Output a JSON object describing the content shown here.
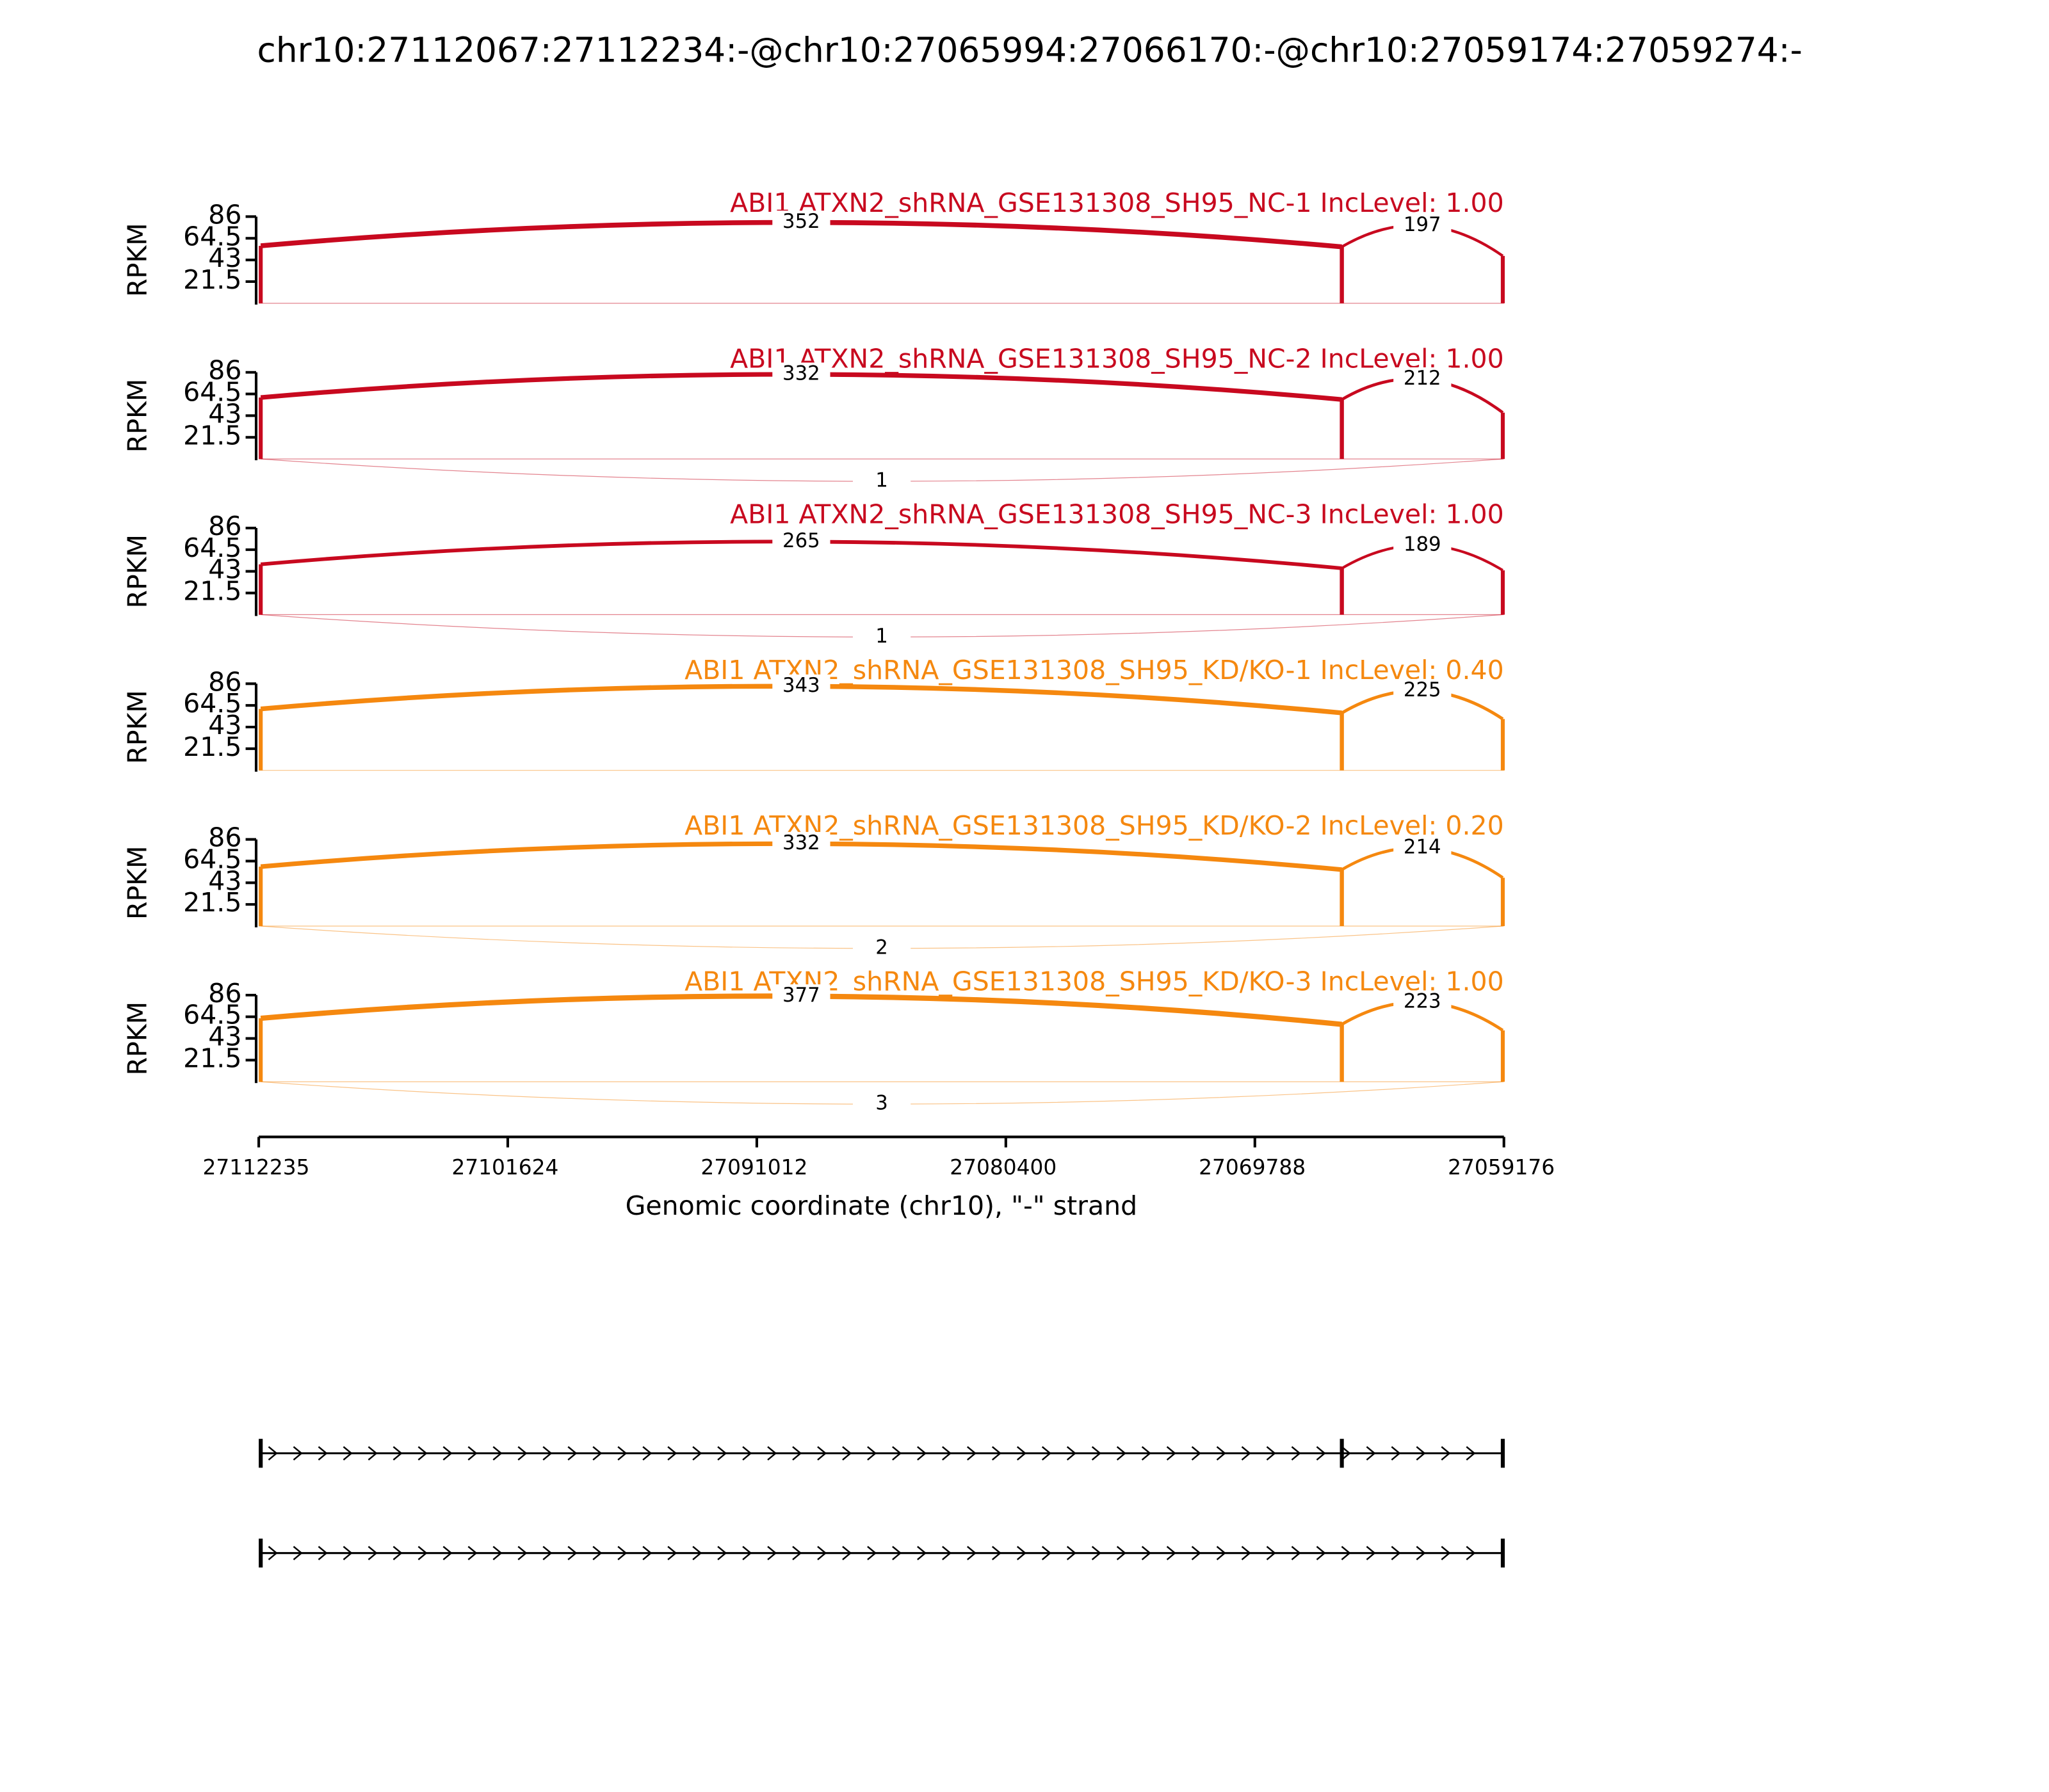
{
  "chart_data": {
    "type": "sashimi",
    "title": "chr10:27112067:27112234:-@chr10:27065994:27066170:-@chr10:27059174:27059274:-",
    "xlabel": "Genomic coordinate (chr10), \"-\" strand",
    "ylabel": "RPKM",
    "xlim": [
      27112235,
      27059176
    ],
    "xticks": [
      27112235,
      27101624,
      27091012,
      27080400,
      27069788,
      27059176
    ],
    "ylim": [
      0,
      86
    ],
    "yticks": [
      21.5,
      43,
      64.5,
      86
    ],
    "exons": [
      [
        27112067,
        27112234
      ],
      [
        27065994,
        27066170
      ],
      [
        27059174,
        27059274
      ]
    ],
    "panels": [
      {
        "name": "ABI1 ATXN2_shRNA_GSE131308_SH95_NC-1 IncLevel: 1.00",
        "color": "#c8091f",
        "exon_rpkm": [
          57,
          56,
          47
        ],
        "junctions": [
          {
            "exons": [
              0,
              1
            ],
            "count": 352
          },
          {
            "exons": [
              1,
              2
            ],
            "count": 197
          }
        ]
      },
      {
        "name": "ABI1 ATXN2_shRNA_GSE131308_SH95_NC-2 IncLevel: 1.00",
        "color": "#c8091f",
        "exon_rpkm": [
          61,
          59,
          46
        ],
        "junctions": [
          {
            "exons": [
              0,
              1
            ],
            "count": 332
          },
          {
            "exons": [
              1,
              2
            ],
            "count": 212
          },
          {
            "exons": [
              0,
              2
            ],
            "count": 1
          }
        ]
      },
      {
        "name": "ABI1 ATXN2_shRNA_GSE131308_SH95_NC-3 IncLevel: 1.00",
        "color": "#c8091f",
        "exon_rpkm": [
          50,
          46,
          44
        ],
        "junctions": [
          {
            "exons": [
              0,
              1
            ],
            "count": 265
          },
          {
            "exons": [
              1,
              2
            ],
            "count": 189
          },
          {
            "exons": [
              0,
              2
            ],
            "count": 1
          }
        ]
      },
      {
        "name": "ABI1 ATXN2_shRNA_GSE131308_SH95_KD/KO-1 IncLevel: 0.40",
        "color": "#f5880f",
        "exon_rpkm": [
          61,
          57,
          51
        ],
        "junctions": [
          {
            "exons": [
              0,
              1
            ],
            "count": 343
          },
          {
            "exons": [
              1,
              2
            ],
            "count": 225
          }
        ]
      },
      {
        "name": "ABI1 ATXN2_shRNA_GSE131308_SH95_KD/KO-2 IncLevel: 0.20",
        "color": "#f5880f",
        "exon_rpkm": [
          59,
          56,
          48
        ],
        "junctions": [
          {
            "exons": [
              0,
              1
            ],
            "count": 332
          },
          {
            "exons": [
              1,
              2
            ],
            "count": 214
          },
          {
            "exons": [
              0,
              2
            ],
            "count": 2
          }
        ]
      },
      {
        "name": "ABI1 ATXN2_shRNA_GSE131308_SH95_KD/KO-3 IncLevel: 1.00",
        "color": "#f5880f",
        "exon_rpkm": [
          63,
          57,
          51
        ],
        "junctions": [
          {
            "exons": [
              0,
              1
            ],
            "count": 377
          },
          {
            "exons": [
              1,
              2
            ],
            "count": 223
          },
          {
            "exons": [
              0,
              2
            ],
            "count": 3
          }
        ]
      }
    ],
    "transcripts": [
      [
        0,
        1,
        2
      ],
      [
        0,
        2
      ]
    ]
  }
}
